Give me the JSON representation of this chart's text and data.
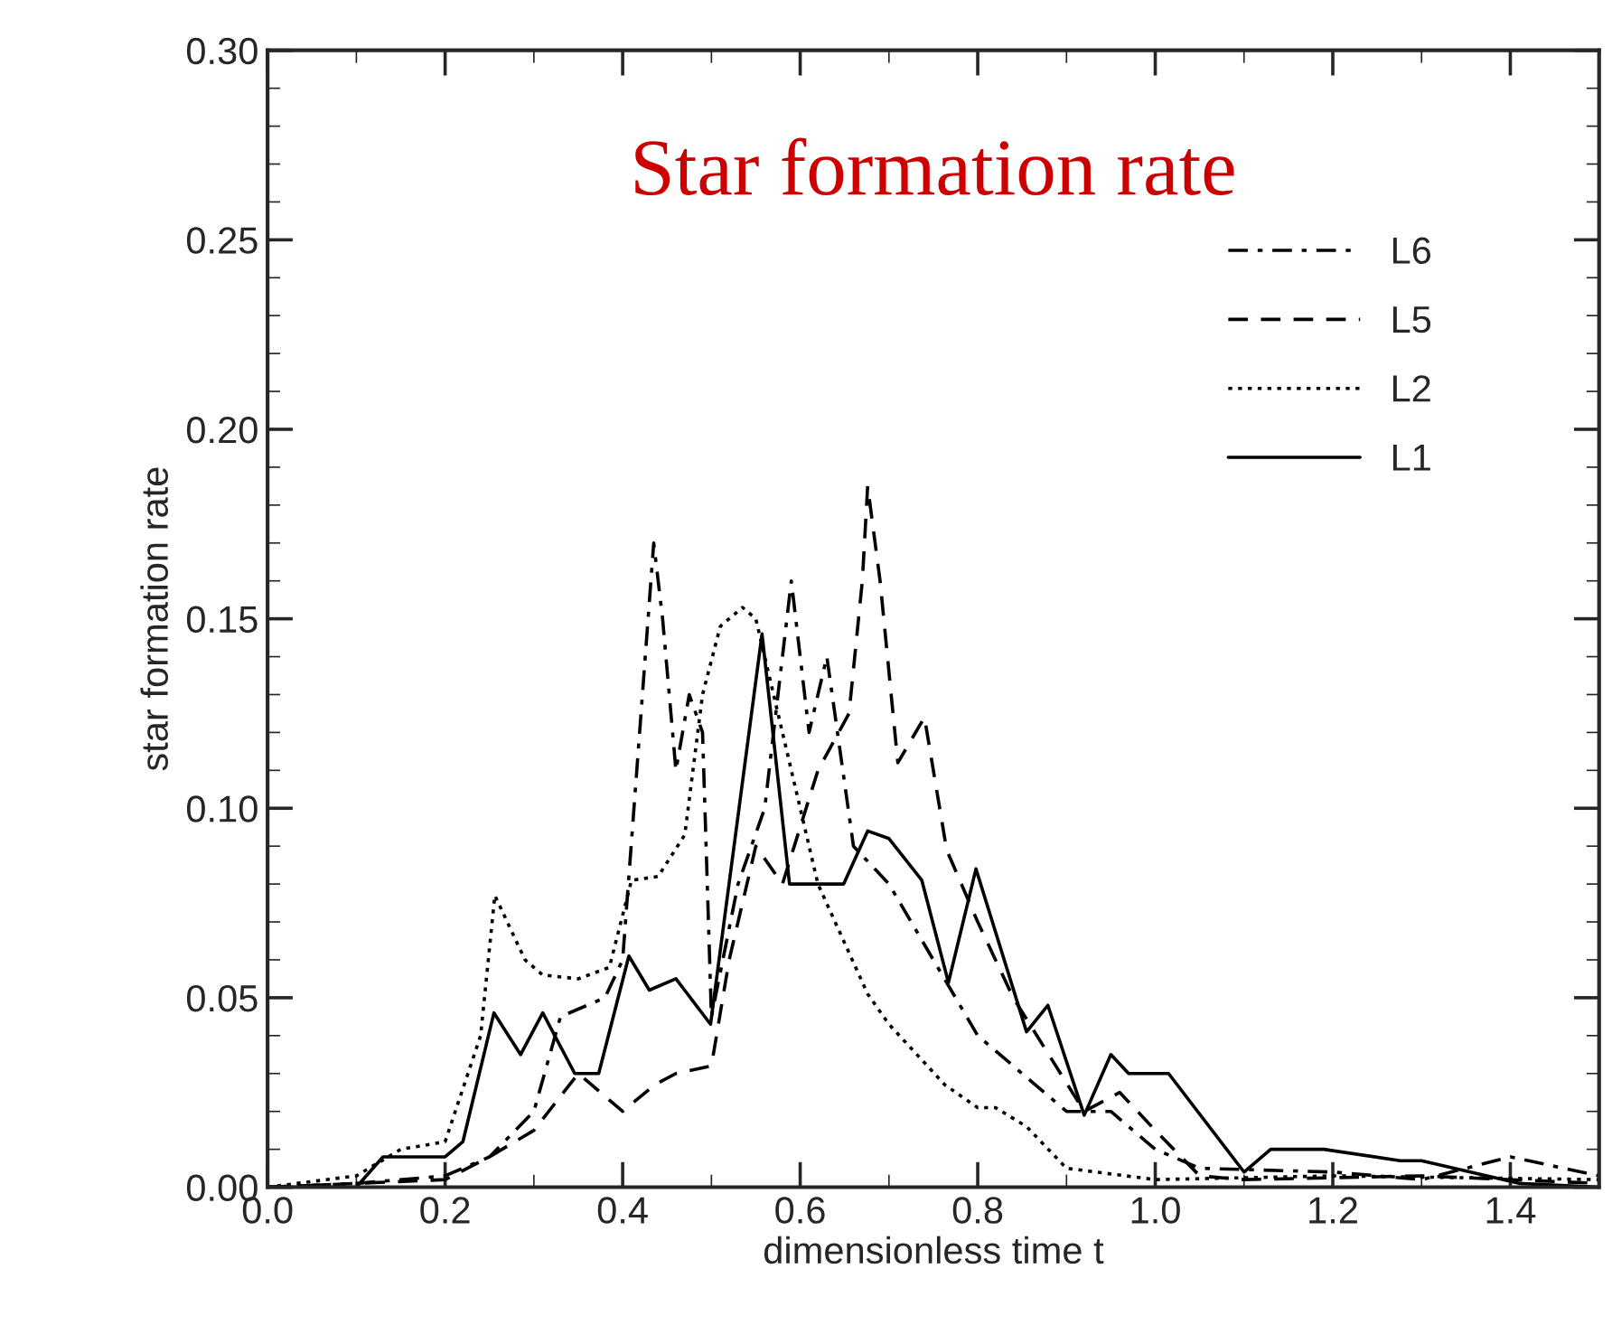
{
  "chart_data": {
    "type": "line",
    "title": "Star formation rate",
    "xlabel": "dimensionless time t",
    "ylabel": "star formation rate",
    "xlim": [
      0,
      1.5
    ],
    "xticks": [
      {
        "value": 0,
        "label": "0.0"
      },
      0.2,
      0.4,
      0.6,
      0.8,
      {
        "value": 1,
        "label": "1.0"
      },
      1.2,
      1.4
    ],
    "ylim": [
      0,
      0.3
    ],
    "yticks": [
      {
        "value": 0,
        "label": "0.00"
      },
      0.05,
      {
        "value": 0.1,
        "label": "0.10"
      },
      0.15,
      {
        "value": 0.2,
        "label": "0.20"
      },
      0.25,
      {
        "value": 0.3,
        "label": "0.30"
      }
    ],
    "grid": false,
    "legend": "right",
    "marker": "none",
    "series": [
      {
        "name": "L6",
        "color": "#000000",
        "line_style": "dashdot",
        "x": [
          0,
          0.1,
          0.2,
          0.25,
          0.3,
          0.33,
          0.38,
          0.4,
          0.435,
          0.445,
          0.46,
          0.475,
          0.49,
          0.5,
          0.53,
          0.56,
          0.59,
          0.61,
          0.63,
          0.66,
          0.7,
          0.75,
          0.8,
          0.85,
          0.9,
          0.95,
          1.0,
          1.05,
          1.2,
          1.3,
          1.4,
          1.5
        ],
        "values": [
          0,
          0.001,
          0.003,
          0.008,
          0.02,
          0.045,
          0.05,
          0.06,
          0.17,
          0.15,
          0.11,
          0.13,
          0.12,
          0.045,
          0.08,
          0.1,
          0.16,
          0.12,
          0.14,
          0.09,
          0.08,
          0.06,
          0.04,
          0.03,
          0.02,
          0.02,
          0.01,
          0.005,
          0.004,
          0.002,
          0.008,
          0.003
        ]
      },
      {
        "name": "L5",
        "color": "#000000",
        "line_style": "dashed",
        "x": [
          0,
          0.2,
          0.25,
          0.3,
          0.35,
          0.4,
          0.436,
          0.46,
          0.5,
          0.52,
          0.55,
          0.58,
          0.62,
          0.655,
          0.67,
          0.676,
          0.69,
          0.71,
          0.74,
          0.765,
          0.8,
          0.84,
          0.88,
          0.92,
          0.96,
          1.0,
          1.05,
          1.1,
          1.3,
          1.5
        ],
        "values": [
          0,
          0.002,
          0.008,
          0.015,
          0.03,
          0.02,
          0.027,
          0.03,
          0.032,
          0.06,
          0.09,
          0.08,
          0.11,
          0.125,
          0.16,
          0.185,
          0.16,
          0.112,
          0.124,
          0.089,
          0.07,
          0.05,
          0.035,
          0.02,
          0.025,
          0.015,
          0.003,
          0.002,
          0.003,
          0.001
        ]
      },
      {
        "name": "L2",
        "color": "#000000",
        "line_style": "dotted",
        "x": [
          0,
          0.1,
          0.15,
          0.2,
          0.24,
          0.256,
          0.29,
          0.31,
          0.35,
          0.385,
          0.41,
          0.44,
          0.47,
          0.49,
          0.51,
          0.535,
          0.55,
          0.58,
          0.62,
          0.676,
          0.7,
          0.763,
          0.8,
          0.82,
          0.855,
          0.9,
          1.0,
          1.2,
          1.5
        ],
        "values": [
          0,
          0.003,
          0.01,
          0.012,
          0.04,
          0.077,
          0.06,
          0.056,
          0.055,
          0.058,
          0.081,
          0.082,
          0.093,
          0.13,
          0.148,
          0.153,
          0.15,
          0.12,
          0.08,
          0.051,
          0.043,
          0.027,
          0.021,
          0.021,
          0.016,
          0.005,
          0.002,
          0.003,
          0.002
        ]
      },
      {
        "name": "L1",
        "color": "#000000",
        "line_style": "solid",
        "x": [
          0,
          0.1,
          0.13,
          0.2,
          0.22,
          0.255,
          0.285,
          0.31,
          0.346,
          0.373,
          0.407,
          0.43,
          0.46,
          0.499,
          0.557,
          0.588,
          0.649,
          0.676,
          0.7,
          0.737,
          0.767,
          0.798,
          0.855,
          0.879,
          0.92,
          0.95,
          0.97,
          1.015,
          1.1,
          1.13,
          1.19,
          1.276,
          1.3,
          1.41,
          1.5
        ],
        "values": [
          0,
          0,
          0.008,
          0.008,
          0.012,
          0.046,
          0.035,
          0.046,
          0.03,
          0.03,
          0.061,
          0.052,
          0.055,
          0.043,
          0.146,
          0.08,
          0.08,
          0.094,
          0.092,
          0.081,
          0.054,
          0.084,
          0.041,
          0.048,
          0.019,
          0.035,
          0.03,
          0.03,
          0.004,
          0.01,
          0.01,
          0.007,
          0.007,
          0.001,
          0
        ]
      }
    ]
  }
}
